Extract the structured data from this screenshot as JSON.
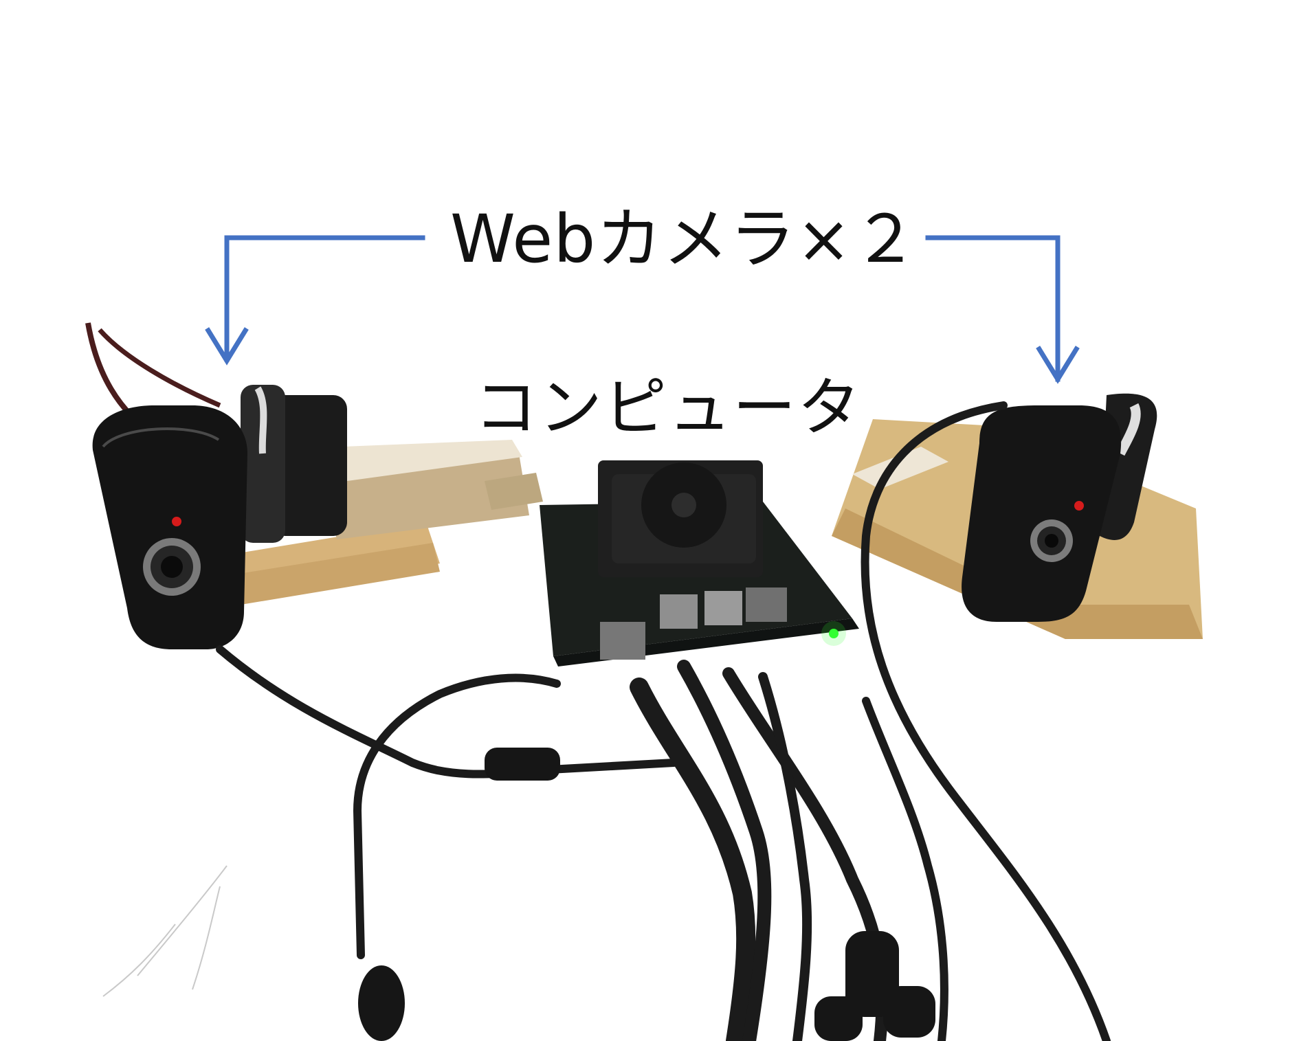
{
  "annotations": {
    "webcam_label": "Webカメラ×２",
    "computer_label": "コンピュータ"
  },
  "icons": {
    "arrows": "arrow-down-icon"
  },
  "colors": {
    "arrow": "#4472C4",
    "background": "#FFFFFF",
    "label_text": "#111111"
  }
}
